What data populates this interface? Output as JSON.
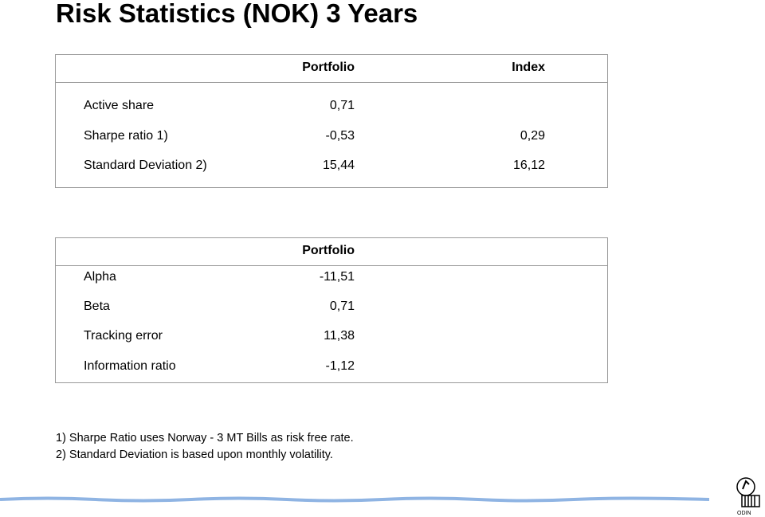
{
  "header": {
    "title": "Risk Statistics (NOK) 3 Years"
  },
  "table1": {
    "columns": [
      "Portfolio",
      "Index"
    ],
    "rows": [
      [
        "Active share",
        "0,71",
        null
      ],
      [
        "Sharpe ratio 1)",
        "-0,53",
        "0,29"
      ],
      [
        "Standard Deviation 2)",
        "15,44",
        "16,12"
      ]
    ]
  },
  "table2": {
    "columns": [
      "Portfolio"
    ],
    "rows": [
      [
        "Alpha",
        "-11,51"
      ],
      [
        "Beta",
        "0,71"
      ],
      [
        "Tracking error",
        "11,38"
      ],
      [
        "Information ratio",
        "-1,12"
      ]
    ]
  },
  "footnotes": [
    "1) Sharpe Ratio uses Norway - 3 MT Bills as risk free rate.",
    "2) Standard Deviation is based upon monthly volatility."
  ],
  "logo": {
    "text": "ODIN"
  }
}
